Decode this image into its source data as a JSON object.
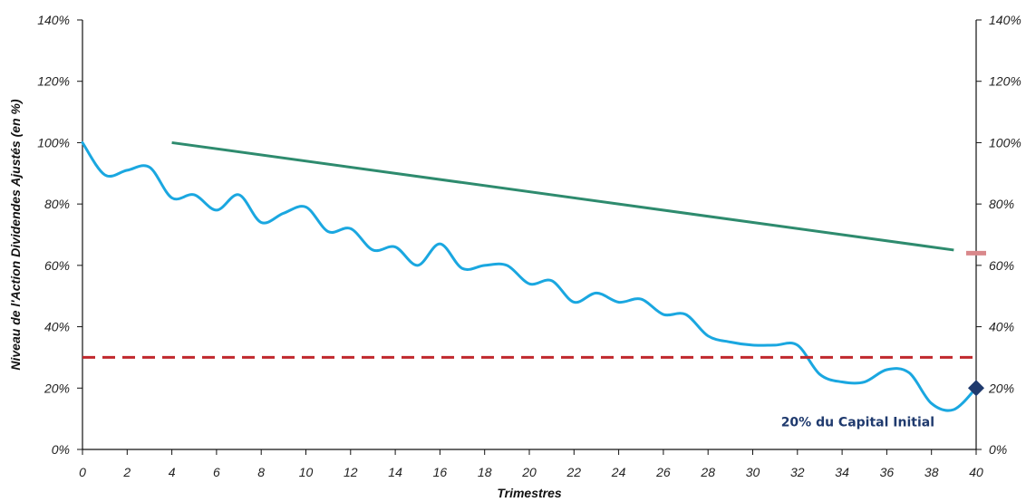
{
  "chart_data": {
    "type": "line",
    "xlabel": "Trimestres",
    "ylabel": "Niveau de l'Action Dividendes Ajustés (en %)",
    "xlim": [
      0,
      40
    ],
    "ylim": [
      0,
      140
    ],
    "x_ticks": [
      0,
      2,
      4,
      6,
      8,
      10,
      12,
      14,
      16,
      18,
      20,
      22,
      24,
      26,
      28,
      30,
      32,
      34,
      36,
      38,
      40
    ],
    "y_ticks": [
      0,
      20,
      40,
      60,
      80,
      100,
      120,
      140
    ],
    "y_tick_suffix": "%",
    "series": [
      {
        "role": "stock",
        "color": "#1aa7e0",
        "points": [
          [
            0,
            100
          ],
          [
            1,
            89.5
          ],
          [
            2,
            91
          ],
          [
            3,
            92
          ],
          [
            4,
            82
          ],
          [
            5,
            83
          ],
          [
            6,
            78
          ],
          [
            7,
            83
          ],
          [
            8,
            74
          ],
          [
            9,
            77
          ],
          [
            10,
            79
          ],
          [
            11,
            71
          ],
          [
            12,
            72
          ],
          [
            13,
            65
          ],
          [
            14,
            66
          ],
          [
            15,
            60
          ],
          [
            16,
            67
          ],
          [
            17,
            59
          ],
          [
            18,
            60
          ],
          [
            19,
            60
          ],
          [
            20,
            54
          ],
          [
            21,
            55
          ],
          [
            22,
            48
          ],
          [
            23,
            51
          ],
          [
            24,
            48
          ],
          [
            25,
            49
          ],
          [
            26,
            44
          ],
          [
            27,
            44
          ],
          [
            28,
            37
          ],
          [
            29,
            35
          ],
          [
            30,
            34
          ],
          [
            31,
            34
          ],
          [
            32,
            34
          ],
          [
            33,
            24.5
          ],
          [
            34,
            22
          ],
          [
            35,
            22
          ],
          [
            36,
            26
          ],
          [
            37,
            25
          ],
          [
            38,
            15
          ],
          [
            39,
            13
          ],
          [
            40,
            20
          ]
        ]
      },
      {
        "role": "autocall-level",
        "color": "#2e8b6e",
        "points": [
          [
            4,
            100
          ],
          [
            39,
            65
          ]
        ]
      },
      {
        "role": "protection-barrier",
        "color": "#c0282d",
        "dashed": true,
        "value": 30
      }
    ],
    "markers": [
      {
        "role": "final-level",
        "x": 40,
        "y": 20,
        "color": "#1f3a6e",
        "shape": "diamond"
      },
      {
        "role": "right-axis-mark",
        "x": 40,
        "y": 64,
        "color": "#d9888b",
        "shape": "dash"
      }
    ],
    "annotations": [
      {
        "text": "20% du Capital Initial",
        "x": 40,
        "y": 9,
        "anchor": "end",
        "color": "#1f3a6e"
      }
    ]
  }
}
